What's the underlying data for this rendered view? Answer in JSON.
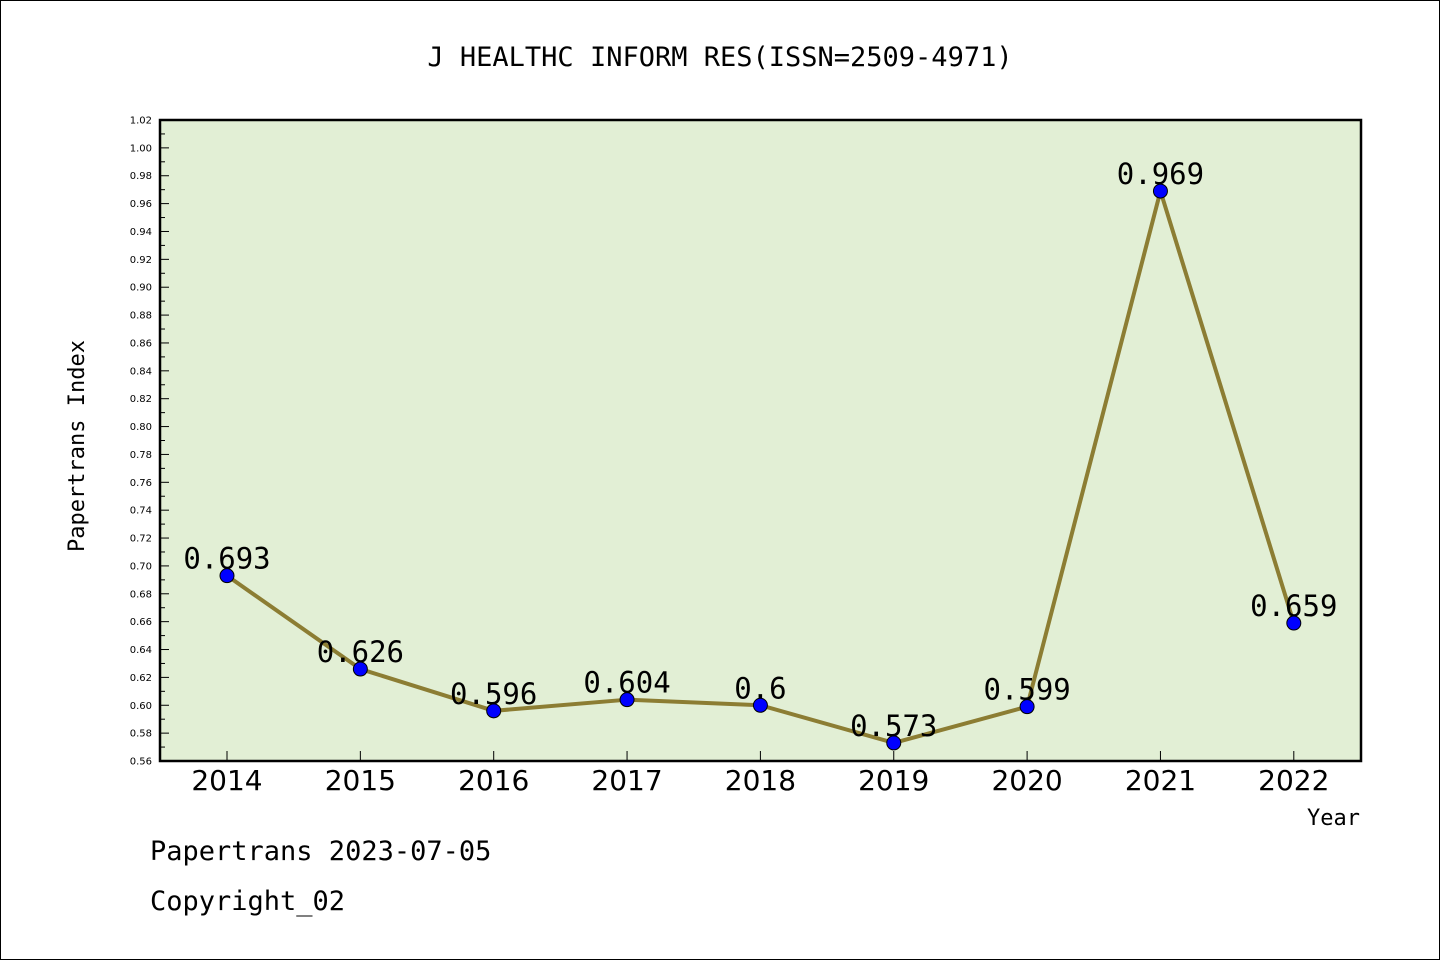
{
  "chart_data": {
    "type": "line",
    "title": "J HEALTHC INFORM RES(ISSN=2509-4971)",
    "xlabel": "Year",
    "ylabel": "Papertrans Index",
    "categories": [
      "2014",
      "2015",
      "2016",
      "2017",
      "2018",
      "2019",
      "2020",
      "2021",
      "2022"
    ],
    "series": [
      {
        "values": [
          0.693,
          0.626,
          0.596,
          0.604,
          0.6,
          0.573,
          0.599,
          0.969,
          0.659
        ],
        "labels": [
          "0.693",
          "0.626",
          "0.596",
          "0.604",
          "0.6",
          "0.573",
          "0.599",
          "0.969",
          "0.659"
        ]
      }
    ],
    "ylim": [
      0.56,
      1.02
    ],
    "yticks": [
      "0.56",
      "0.58",
      "0.60",
      "0.62",
      "0.64",
      "0.66",
      "0.68",
      "0.70",
      "0.72",
      "0.74",
      "0.76",
      "0.78",
      "0.80",
      "0.82",
      "0.84",
      "0.86",
      "0.88",
      "0.90",
      "0.92",
      "0.94",
      "0.96",
      "0.98",
      "1.00",
      "1.02"
    ],
    "grid": false,
    "legend": "none",
    "colors": {
      "plot_background": "#e2efd5",
      "line": "#8c7d33",
      "marker": "#0000ff"
    }
  },
  "footer": {
    "date_line": "Papertrans 2023-07-05",
    "copyright_line": "Copyright_02"
  }
}
